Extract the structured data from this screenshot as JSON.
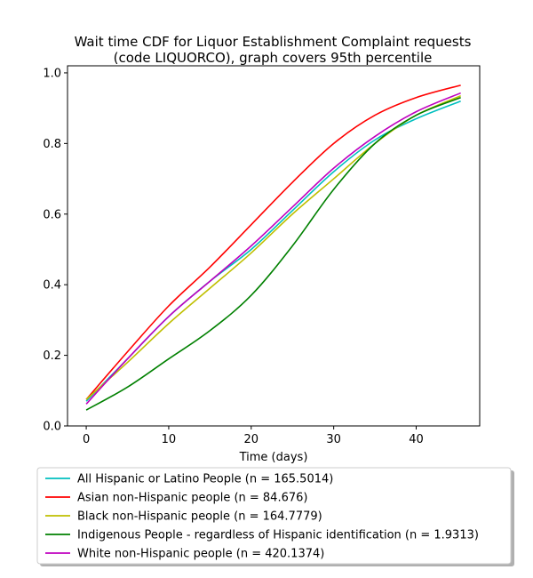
{
  "chart_data": {
    "type": "line",
    "title": "Wait time CDF for Liquor Establishment Complaint  requests (code LIQUORCO), graph covers 95th percentile",
    "title_lines": [
      "Wait time CDF for Liquor Establishment Complaint  requests",
      "(code LIQUORCO), graph covers 95th percentile"
    ],
    "xlabel": "Time (days)",
    "ylabel": "",
    "xlim": [
      -2.27,
      47.7
    ],
    "ylim": [
      0,
      1.02
    ],
    "xticks": [
      0,
      10,
      20,
      30,
      40
    ],
    "yticks": [
      0.0,
      0.2,
      0.4,
      0.6,
      0.8,
      1.0
    ],
    "xtick_labels": [
      "0",
      "10",
      "20",
      "30",
      "40"
    ],
    "ytick_labels": [
      "0.0",
      "0.2",
      "0.4",
      "0.6",
      "0.8",
      "1.0"
    ],
    "grid": false,
    "legend_placement": "below plot",
    "x": [
      0,
      5,
      10,
      15,
      20,
      25,
      30,
      35,
      40,
      45.4
    ],
    "series": [
      {
        "name": "All Hispanic or Latino People (n = 165.5014)",
        "color": "#00bfbf",
        "values": [
          0.07,
          0.19,
          0.31,
          0.41,
          0.5,
          0.61,
          0.72,
          0.81,
          0.87,
          0.92
        ]
      },
      {
        "name": "Asian non-Hispanic people (n = 84.676)",
        "color": "#ff0000",
        "values": [
          0.075,
          0.21,
          0.34,
          0.45,
          0.57,
          0.69,
          0.8,
          0.88,
          0.93,
          0.965
        ]
      },
      {
        "name": "Black non-Hispanic people (n = 164.7779)",
        "color": "#bfbf00",
        "values": [
          0.075,
          0.18,
          0.29,
          0.39,
          0.49,
          0.6,
          0.7,
          0.8,
          0.88,
          0.935
        ]
      },
      {
        "name": "Indigenous People - regardless of Hispanic identification (n = 1.9313)",
        "color": "#008000",
        "values": [
          0.045,
          0.11,
          0.19,
          0.27,
          0.37,
          0.51,
          0.67,
          0.8,
          0.88,
          0.93
        ]
      },
      {
        "name": "White non-Hispanic people (n = 420.1374)",
        "color": "#bf00bf",
        "values": [
          0.062,
          0.19,
          0.31,
          0.41,
          0.51,
          0.62,
          0.73,
          0.82,
          0.89,
          0.943
        ]
      }
    ]
  }
}
